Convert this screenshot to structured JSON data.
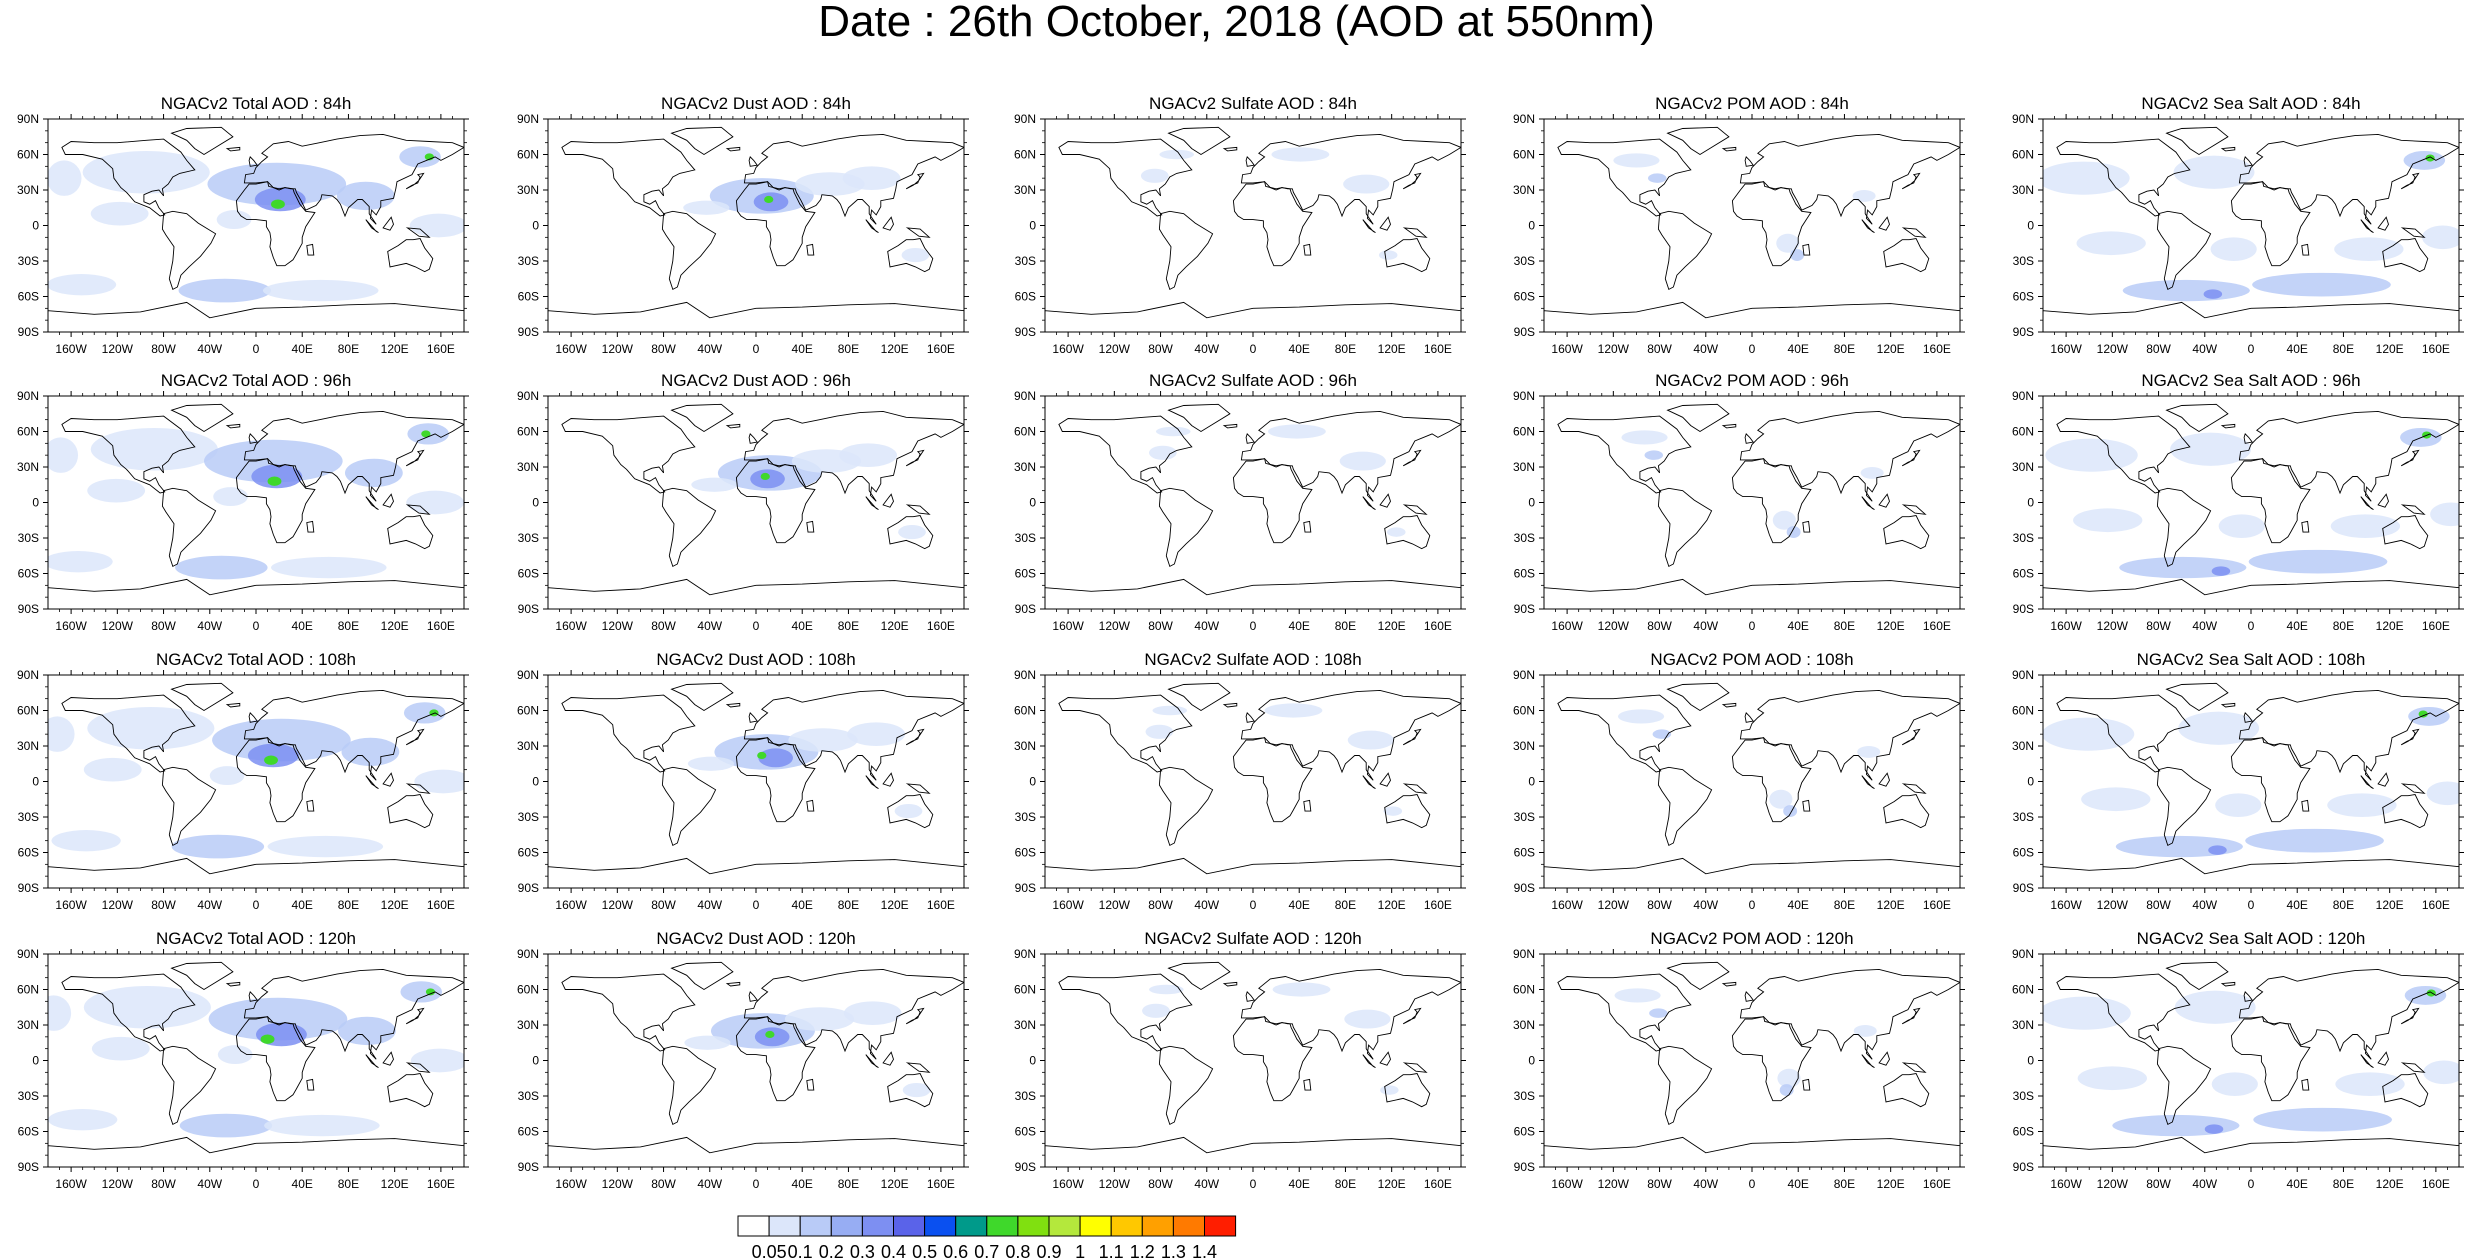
{
  "title": "Date : 26th October, 2018 (AOD at 550nm)",
  "panels": [
    [
      "NGACv2 Total AOD : 84h",
      "NGACv2 Dust AOD : 84h",
      "NGACv2 Sulfate AOD : 84h",
      "NGACv2 POM AOD : 84h",
      "NGACv2 Sea Salt AOD : 84h"
    ],
    [
      "NGACv2 Total AOD : 96h",
      "NGACv2 Dust AOD : 96h",
      "NGACv2 Sulfate AOD : 96h",
      "NGACv2 POM AOD : 96h",
      "NGACv2 Sea Salt AOD : 96h"
    ],
    [
      "NGACv2 Total AOD : 108h",
      "NGACv2 Dust AOD : 108h",
      "NGACv2 Sulfate AOD : 108h",
      "NGACv2 POM AOD : 108h",
      "NGACv2 Sea Salt AOD : 108h"
    ],
    [
      "NGACv2 Total AOD : 120h",
      "NGACv2 Dust AOD : 120h",
      "NGACv2 Sulfate AOD : 120h",
      "NGACv2 POM AOD : 120h",
      "NGACv2 Sea Salt  AOD : 120h"
    ]
  ],
  "lat_ticks": [
    "90N",
    "60N",
    "30N",
    "0",
    "30S",
    "60S",
    "90S"
  ],
  "lon_ticks": [
    "160W",
    "120W",
    "80W",
    "40W",
    "0",
    "40E",
    "80E",
    "120E",
    "160E"
  ],
  "colorbar": {
    "labels": [
      "0.05",
      "0.1",
      "0.2",
      "0.3",
      "0.4",
      "0.5",
      "0.6",
      "0.7",
      "0.8",
      "0.9",
      "1",
      "1.1",
      "1.2",
      "1.3",
      "1.4"
    ],
    "colors": [
      "#ffffff",
      "#dce6fa",
      "#b9cbf7",
      "#97adf3",
      "#7d8ff2",
      "#5a63e9",
      "#0a50f0",
      "#009a8a",
      "#3fd82b",
      "#80e010",
      "#b4e83c",
      "#ffff00",
      "#ffc800",
      "#ffa000",
      "#ff7a00",
      "#ff1e00"
    ]
  }
}
